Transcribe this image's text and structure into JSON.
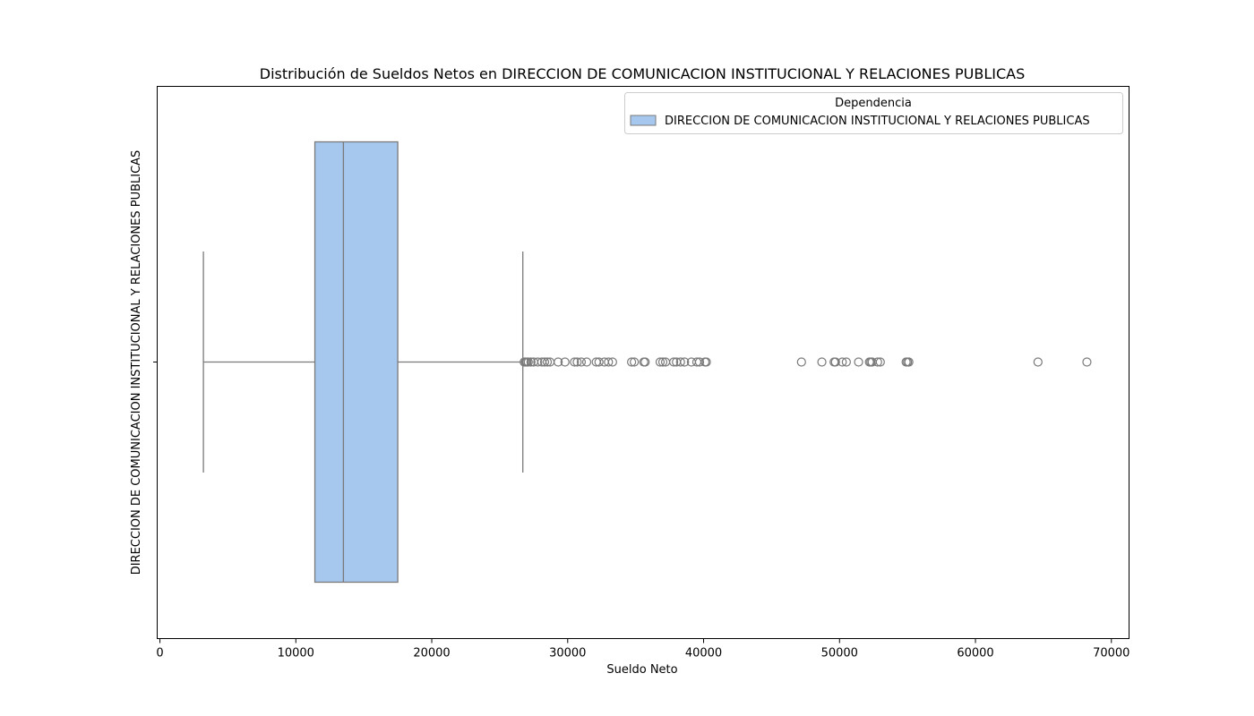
{
  "chart_data": {
    "type": "box",
    "title": "Distribución de Sueldos Netos en DIRECCION DE COMUNICACION INSTITUCIONAL Y RELACIONES PUBLICAS",
    "xlabel": "Sueldo Neto",
    "ylabel": "DIRECCION DE COMUNICACION INSTITUCIONAL Y RELACIONES PUBLICAS",
    "xlim": [
      -200,
      71300
    ],
    "x_ticks": [
      0,
      10000,
      20000,
      30000,
      40000,
      50000,
      60000,
      70000
    ],
    "legend": {
      "title": "Dependencia",
      "position": "top-right",
      "entries": [
        {
          "label": "DIRECCION DE COMUNICACION INSTITUCIONAL Y RELACIONES PUBLICAS",
          "color": "#a6c8ee"
        }
      ]
    },
    "series": [
      {
        "name": "DIRECCION DE COMUNICACION INSTITUCIONAL Y RELACIONES PUBLICAS",
        "whisker_low": 3200,
        "q1": 11400,
        "median": 13500,
        "q3": 17500,
        "whisker_high": 26700,
        "outliers": [
          26800,
          26900,
          27000,
          27100,
          27300,
          27500,
          27800,
          28100,
          28300,
          28500,
          28700,
          29300,
          29800,
          30500,
          30700,
          31000,
          31400,
          32100,
          32300,
          32700,
          33000,
          33300,
          34700,
          34900,
          35600,
          35700,
          36800,
          37000,
          37200,
          37800,
          38000,
          38300,
          38600,
          39100,
          39500,
          39700,
          40100,
          40200,
          47200,
          48700,
          49600,
          49700,
          50200,
          50500,
          51400,
          52200,
          52300,
          52400,
          52800,
          53000,
          54900,
          55000,
          55100,
          64600,
          68200
        ]
      }
    ],
    "colors": {
      "box_fill": "#a6c8ee",
      "line": "#7a7a7a"
    }
  }
}
